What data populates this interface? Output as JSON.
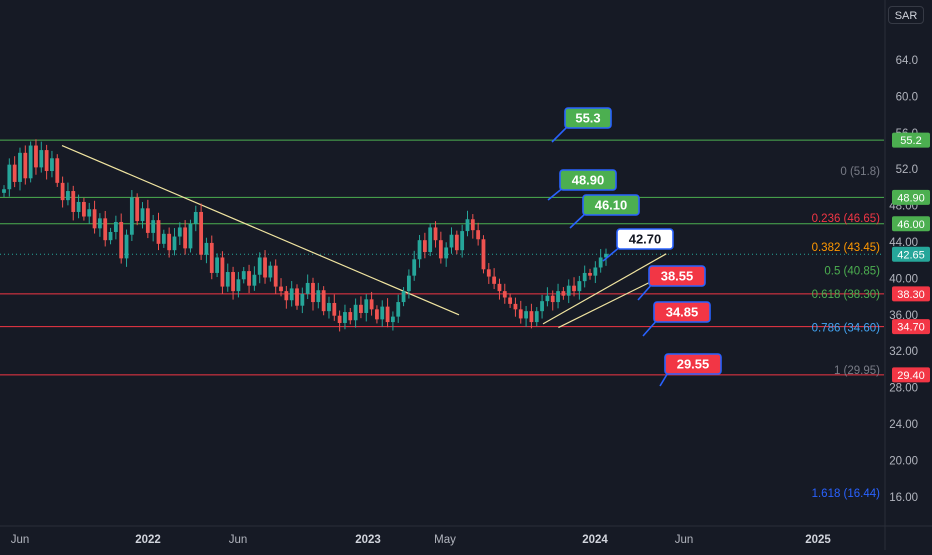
{
  "currency": "SAR",
  "chart_data": {
    "type": "candlestick",
    "x_ticks": [
      "Jun",
      "2022",
      "Jun",
      "2023",
      "May",
      "2024",
      "Jun",
      "2025"
    ],
    "y_ticks": [
      "64.0",
      "60.0",
      "56.0",
      "52.0",
      "48.00",
      "44.00",
      "40.00",
      "36.00",
      "32.00",
      "28.00",
      "24.00",
      "20.00",
      "16.00"
    ],
    "ylim": [
      14,
      68
    ],
    "colors": {
      "up": "#26a69a",
      "down": "#ef5350",
      "green_line": "#4caf50",
      "red_line": "#f23645",
      "trend_line": "#f0e4a0"
    },
    "price_lines": [
      {
        "label": "55.2",
        "value": 55.2,
        "color": "green"
      },
      {
        "label": "48.90",
        "value": 48.9,
        "color": "green"
      },
      {
        "label": "46.00",
        "value": 46.0,
        "color": "green"
      },
      {
        "label": "38.30",
        "value": 38.3,
        "color": "red"
      },
      {
        "label": "34.70",
        "value": 34.7,
        "color": "red"
      },
      {
        "label": "29.40",
        "value": 29.4,
        "color": "red"
      }
    ],
    "last_price": {
      "label": "42.65",
      "value": 42.65
    },
    "fib_levels": [
      {
        "text": "0 (51.8)",
        "value": 51.8,
        "color": "#787b86"
      },
      {
        "text": "0.236 (46.65)",
        "value": 46.65,
        "color": "#f23645"
      },
      {
        "text": "0.382 (43.45)",
        "value": 43.45,
        "color": "#ff9800"
      },
      {
        "text": "0.5 (40.85)",
        "value": 40.85,
        "color": "#4caf50"
      },
      {
        "text": "0.618 (38.30)",
        "value": 38.3,
        "color": "#4caf50"
      },
      {
        "text": "0.786 (34.60)",
        "value": 34.6,
        "color": "#42a5f5"
      },
      {
        "text": "1 (29.95)",
        "value": 29.95,
        "color": "#787b86"
      },
      {
        "text": "1.618 (16.44)",
        "value": 16.44,
        "color": "#2962ff"
      }
    ],
    "target_labels": [
      {
        "text": "55.3",
        "color": "green"
      },
      {
        "text": "48.90",
        "color": "green"
      },
      {
        "text": "46.10",
        "color": "green"
      },
      {
        "text": "42.70",
        "color": "white"
      },
      {
        "text": "38.55",
        "color": "red"
      },
      {
        "text": "34.85",
        "color": "red"
      },
      {
        "text": "29.55",
        "color": "red"
      }
    ],
    "closes": [
      49.8,
      52.5,
      50.6,
      53.8,
      51.0,
      54.6,
      52.2,
      54.1,
      51.8,
      53.2,
      50.5,
      48.6,
      49.6,
      47.3,
      48.4,
      46.8,
      47.6,
      45.5,
      46.6,
      44.2,
      45.1,
      46.2,
      42.2,
      44.8,
      48.9,
      46.3,
      47.7,
      45.0,
      46.4,
      43.8,
      44.9,
      43.1,
      44.6,
      45.6,
      43.3,
      46.0,
      47.3,
      42.6,
      43.9,
      40.6,
      42.3,
      39.1,
      40.7,
      38.6,
      39.9,
      40.8,
      39.2,
      40.4,
      42.3,
      40.1,
      41.4,
      39.1,
      38.6,
      37.6,
      38.9,
      37.0,
      38.3,
      39.5,
      37.4,
      38.7,
      36.4,
      37.3,
      35.9,
      35.1,
      36.3,
      35.4,
      37.1,
      36.2,
      37.7,
      36.6,
      35.5,
      36.9,
      35.2,
      35.8,
      37.4,
      38.6,
      40.3,
      42.1,
      44.2,
      42.9,
      45.6,
      44.2,
      42.2,
      43.4,
      44.8,
      43.1,
      45.2,
      46.5,
      45.3,
      44.3,
      41.0,
      40.2,
      39.4,
      38.6,
      37.9,
      37.2,
      36.6,
      35.6,
      36.4,
      35.2,
      36.4,
      37.5,
      38.1,
      37.4,
      38.6,
      38.1,
      39.2,
      38.6,
      39.7,
      40.6,
      40.3,
      41.2,
      42.3,
      42.7
    ],
    "trend_lines": [
      {
        "from": [
          0.1,
          54.6
        ],
        "to": [
          0.8,
          36.0
        ]
      },
      {
        "from": [
          0.7,
          35.0
        ],
        "to": [
          0.86,
          42.7
        ]
      },
      {
        "from": [
          0.72,
          34.6
        ],
        "to": [
          0.88,
          41.3
        ]
      }
    ]
  }
}
